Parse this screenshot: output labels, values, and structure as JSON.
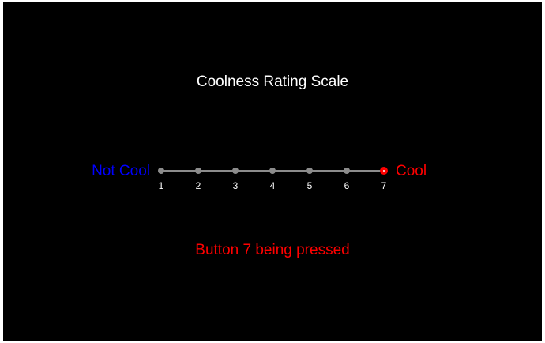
{
  "title": "Coolness Rating Scale",
  "scale": {
    "left_label": "Not Cool",
    "right_label": "Cool",
    "points": [
      "1",
      "2",
      "3",
      "4",
      "5",
      "6",
      "7"
    ],
    "selected": "7"
  },
  "status": "Button 7 being pressed",
  "colors": {
    "background": "#000000",
    "title": "#ffffff",
    "left_label": "#0000ff",
    "right_label": "#ff0000",
    "status": "#ff0000",
    "point_default": "#8c8c8c",
    "point_selected": "#ff0000"
  }
}
